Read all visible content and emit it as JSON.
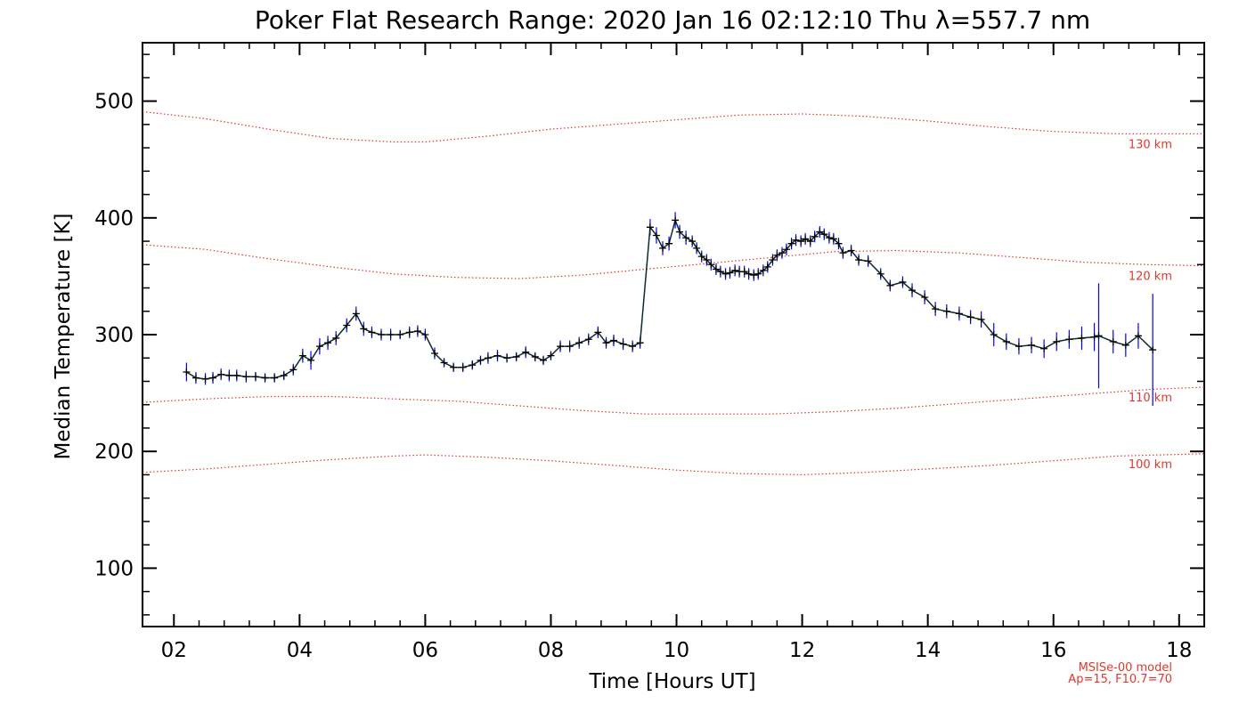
{
  "chart_data": {
    "type": "line",
    "title": "Poker Flat Research Range: 2020 Jan 16 02:12:10 Thu λ=557.7 nm",
    "xlabel": "Time [Hours UT]",
    "ylabel": "Median Temperature [K]",
    "xlim": [
      1.5,
      18.4
    ],
    "ylim": [
      50,
      550
    ],
    "x_ticks": [
      2,
      4,
      6,
      8,
      10,
      12,
      14,
      16,
      18
    ],
    "x_tick_labels": [
      "02",
      "04",
      "06",
      "08",
      "10",
      "12",
      "14",
      "16",
      "18"
    ],
    "y_ticks": [
      100,
      200,
      300,
      400,
      500
    ],
    "y_tick_labels": [
      "100",
      "200",
      "300",
      "400",
      "500"
    ],
    "grid": false,
    "model_note": [
      "MSISe-00 model",
      "Ap=15, F10.7=70"
    ],
    "series": [
      {
        "role": "measurement",
        "color": "#000000",
        "errorbar_color": "#0000ff",
        "points": [
          [
            2.2,
            268,
            8
          ],
          [
            2.35,
            263,
            5
          ],
          [
            2.5,
            262,
            5
          ],
          [
            2.62,
            263,
            5
          ],
          [
            2.75,
            266,
            5
          ],
          [
            2.88,
            265,
            5
          ],
          [
            3.0,
            265,
            5
          ],
          [
            3.15,
            264,
            5
          ],
          [
            3.3,
            264,
            4
          ],
          [
            3.45,
            263,
            4
          ],
          [
            3.6,
            263,
            4
          ],
          [
            3.75,
            265,
            4
          ],
          [
            3.9,
            270,
            5
          ],
          [
            4.05,
            282,
            6
          ],
          [
            4.18,
            278,
            8
          ],
          [
            4.32,
            290,
            7
          ],
          [
            4.45,
            293,
            6
          ],
          [
            4.58,
            297,
            6
          ],
          [
            4.75,
            308,
            6
          ],
          [
            4.9,
            318,
            6
          ],
          [
            5.02,
            305,
            6
          ],
          [
            5.15,
            302,
            5
          ],
          [
            5.3,
            300,
            5
          ],
          [
            5.45,
            300,
            5
          ],
          [
            5.6,
            300,
            4
          ],
          [
            5.75,
            302,
            5
          ],
          [
            5.88,
            303,
            5
          ],
          [
            6.0,
            300,
            5
          ],
          [
            6.15,
            284,
            5
          ],
          [
            6.3,
            276,
            4
          ],
          [
            6.45,
            272,
            4
          ],
          [
            6.6,
            272,
            4
          ],
          [
            6.75,
            274,
            4
          ],
          [
            6.88,
            278,
            4
          ],
          [
            7.0,
            280,
            5
          ],
          [
            7.15,
            282,
            5
          ],
          [
            7.3,
            280,
            4
          ],
          [
            7.45,
            281,
            4
          ],
          [
            7.6,
            285,
            5
          ],
          [
            7.75,
            281,
            4
          ],
          [
            7.88,
            278,
            4
          ],
          [
            8.0,
            282,
            4
          ],
          [
            8.15,
            290,
            5
          ],
          [
            8.3,
            290,
            5
          ],
          [
            8.45,
            293,
            5
          ],
          [
            8.6,
            296,
            5
          ],
          [
            8.75,
            302,
            5
          ],
          [
            8.88,
            293,
            5
          ],
          [
            9.0,
            295,
            5
          ],
          [
            9.15,
            292,
            5
          ],
          [
            9.3,
            290,
            5
          ],
          [
            9.42,
            293,
            5
          ],
          [
            9.58,
            392,
            7
          ],
          [
            9.68,
            385,
            7
          ],
          [
            9.78,
            374,
            6
          ],
          [
            9.88,
            378,
            6
          ],
          [
            9.98,
            398,
            7
          ],
          [
            10.05,
            388,
            6
          ],
          [
            10.15,
            383,
            6
          ],
          [
            10.25,
            380,
            5
          ],
          [
            10.32,
            374,
            5
          ],
          [
            10.4,
            367,
            5
          ],
          [
            10.48,
            364,
            5
          ],
          [
            10.55,
            360,
            5
          ],
          [
            10.63,
            356,
            5
          ],
          [
            10.7,
            354,
            5
          ],
          [
            10.78,
            352,
            5
          ],
          [
            10.85,
            353,
            5
          ],
          [
            10.93,
            355,
            5
          ],
          [
            11.0,
            354,
            5
          ],
          [
            11.08,
            354,
            5
          ],
          [
            11.15,
            352,
            5
          ],
          [
            11.23,
            351,
            5
          ],
          [
            11.3,
            352,
            5
          ],
          [
            11.38,
            355,
            5
          ],
          [
            11.45,
            358,
            5
          ],
          [
            11.53,
            364,
            5
          ],
          [
            11.6,
            368,
            5
          ],
          [
            11.68,
            370,
            5
          ],
          [
            11.75,
            373,
            5
          ],
          [
            11.83,
            378,
            5
          ],
          [
            11.9,
            381,
            5
          ],
          [
            11.98,
            380,
            5
          ],
          [
            12.05,
            382,
            5
          ],
          [
            12.13,
            380,
            5
          ],
          [
            12.2,
            384,
            5
          ],
          [
            12.28,
            388,
            5
          ],
          [
            12.35,
            386,
            5
          ],
          [
            12.43,
            383,
            5
          ],
          [
            12.5,
            382,
            5
          ],
          [
            12.58,
            378,
            5
          ],
          [
            12.65,
            370,
            5
          ],
          [
            12.78,
            372,
            5
          ],
          [
            12.9,
            364,
            5
          ],
          [
            13.05,
            363,
            5
          ],
          [
            13.25,
            352,
            5
          ],
          [
            13.4,
            342,
            5
          ],
          [
            13.6,
            345,
            5
          ],
          [
            13.75,
            338,
            6
          ],
          [
            13.95,
            332,
            6
          ],
          [
            14.12,
            322,
            6
          ],
          [
            14.3,
            320,
            6
          ],
          [
            14.5,
            318,
            6
          ],
          [
            14.68,
            315,
            6
          ],
          [
            14.85,
            313,
            7
          ],
          [
            15.05,
            300,
            10
          ],
          [
            15.25,
            294,
            7
          ],
          [
            15.45,
            290,
            7
          ],
          [
            15.65,
            291,
            7
          ],
          [
            15.85,
            288,
            8
          ],
          [
            16.05,
            294,
            8
          ],
          [
            16.25,
            296,
            8
          ],
          [
            16.45,
            297,
            10
          ],
          [
            16.65,
            298,
            12
          ],
          [
            16.72,
            299,
            45
          ],
          [
            16.95,
            294,
            10
          ],
          [
            17.15,
            291,
            10
          ],
          [
            17.35,
            299,
            11
          ],
          [
            17.58,
            287,
            48
          ]
        ]
      },
      {
        "name": "130 km",
        "role": "model",
        "style": "dotted",
        "points": [
          [
            1.5,
            491
          ],
          [
            2.5,
            485
          ],
          [
            3.5,
            476
          ],
          [
            4.5,
            468
          ],
          [
            5.5,
            465
          ],
          [
            6.0,
            465
          ],
          [
            7.0,
            470
          ],
          [
            8.0,
            476
          ],
          [
            9.0,
            480
          ],
          [
            10.0,
            484
          ],
          [
            11.0,
            488
          ],
          [
            12.0,
            489
          ],
          [
            13.0,
            487
          ],
          [
            14.0,
            483
          ],
          [
            15.0,
            478
          ],
          [
            16.0,
            474
          ],
          [
            17.0,
            472
          ],
          [
            18.4,
            472
          ]
        ]
      },
      {
        "name": "120 km",
        "role": "model",
        "style": "dotted",
        "points": [
          [
            1.5,
            377
          ],
          [
            2.5,
            373
          ],
          [
            3.5,
            365
          ],
          [
            4.5,
            358
          ],
          [
            5.5,
            352
          ],
          [
            6.5,
            349
          ],
          [
            7.5,
            348
          ],
          [
            8.5,
            351
          ],
          [
            9.5,
            356
          ],
          [
            10.5,
            361
          ],
          [
            11.5,
            366
          ],
          [
            12.5,
            371
          ],
          [
            13.5,
            372
          ],
          [
            14.5,
            370
          ],
          [
            15.5,
            366
          ],
          [
            16.5,
            362
          ],
          [
            17.5,
            360
          ],
          [
            18.4,
            359
          ]
        ]
      },
      {
        "name": "110 km",
        "role": "model",
        "style": "dotted",
        "points": [
          [
            1.5,
            242
          ],
          [
            2.5,
            245
          ],
          [
            3.5,
            247
          ],
          [
            4.5,
            247
          ],
          [
            5.5,
            245
          ],
          [
            6.5,
            243
          ],
          [
            7.5,
            239
          ],
          [
            8.5,
            235
          ],
          [
            9.5,
            232
          ],
          [
            10.5,
            232
          ],
          [
            11.5,
            232
          ],
          [
            12.5,
            234
          ],
          [
            13.5,
            237
          ],
          [
            14.5,
            241
          ],
          [
            15.5,
            245
          ],
          [
            16.5,
            249
          ],
          [
            17.5,
            253
          ],
          [
            18.4,
            255
          ]
        ]
      },
      {
        "name": "100 km",
        "role": "model",
        "style": "dotted",
        "points": [
          [
            1.5,
            182
          ],
          [
            2.5,
            185
          ],
          [
            3.5,
            189
          ],
          [
            4.5,
            193
          ],
          [
            5.5,
            196
          ],
          [
            6.0,
            197
          ],
          [
            7.0,
            195
          ],
          [
            8.0,
            192
          ],
          [
            9.0,
            188
          ],
          [
            10.0,
            184
          ],
          [
            11.0,
            181
          ],
          [
            12.0,
            180
          ],
          [
            13.0,
            182
          ],
          [
            14.0,
            185
          ],
          [
            15.0,
            188
          ],
          [
            16.0,
            192
          ],
          [
            17.0,
            196
          ],
          [
            18.4,
            198
          ]
        ]
      }
    ]
  }
}
